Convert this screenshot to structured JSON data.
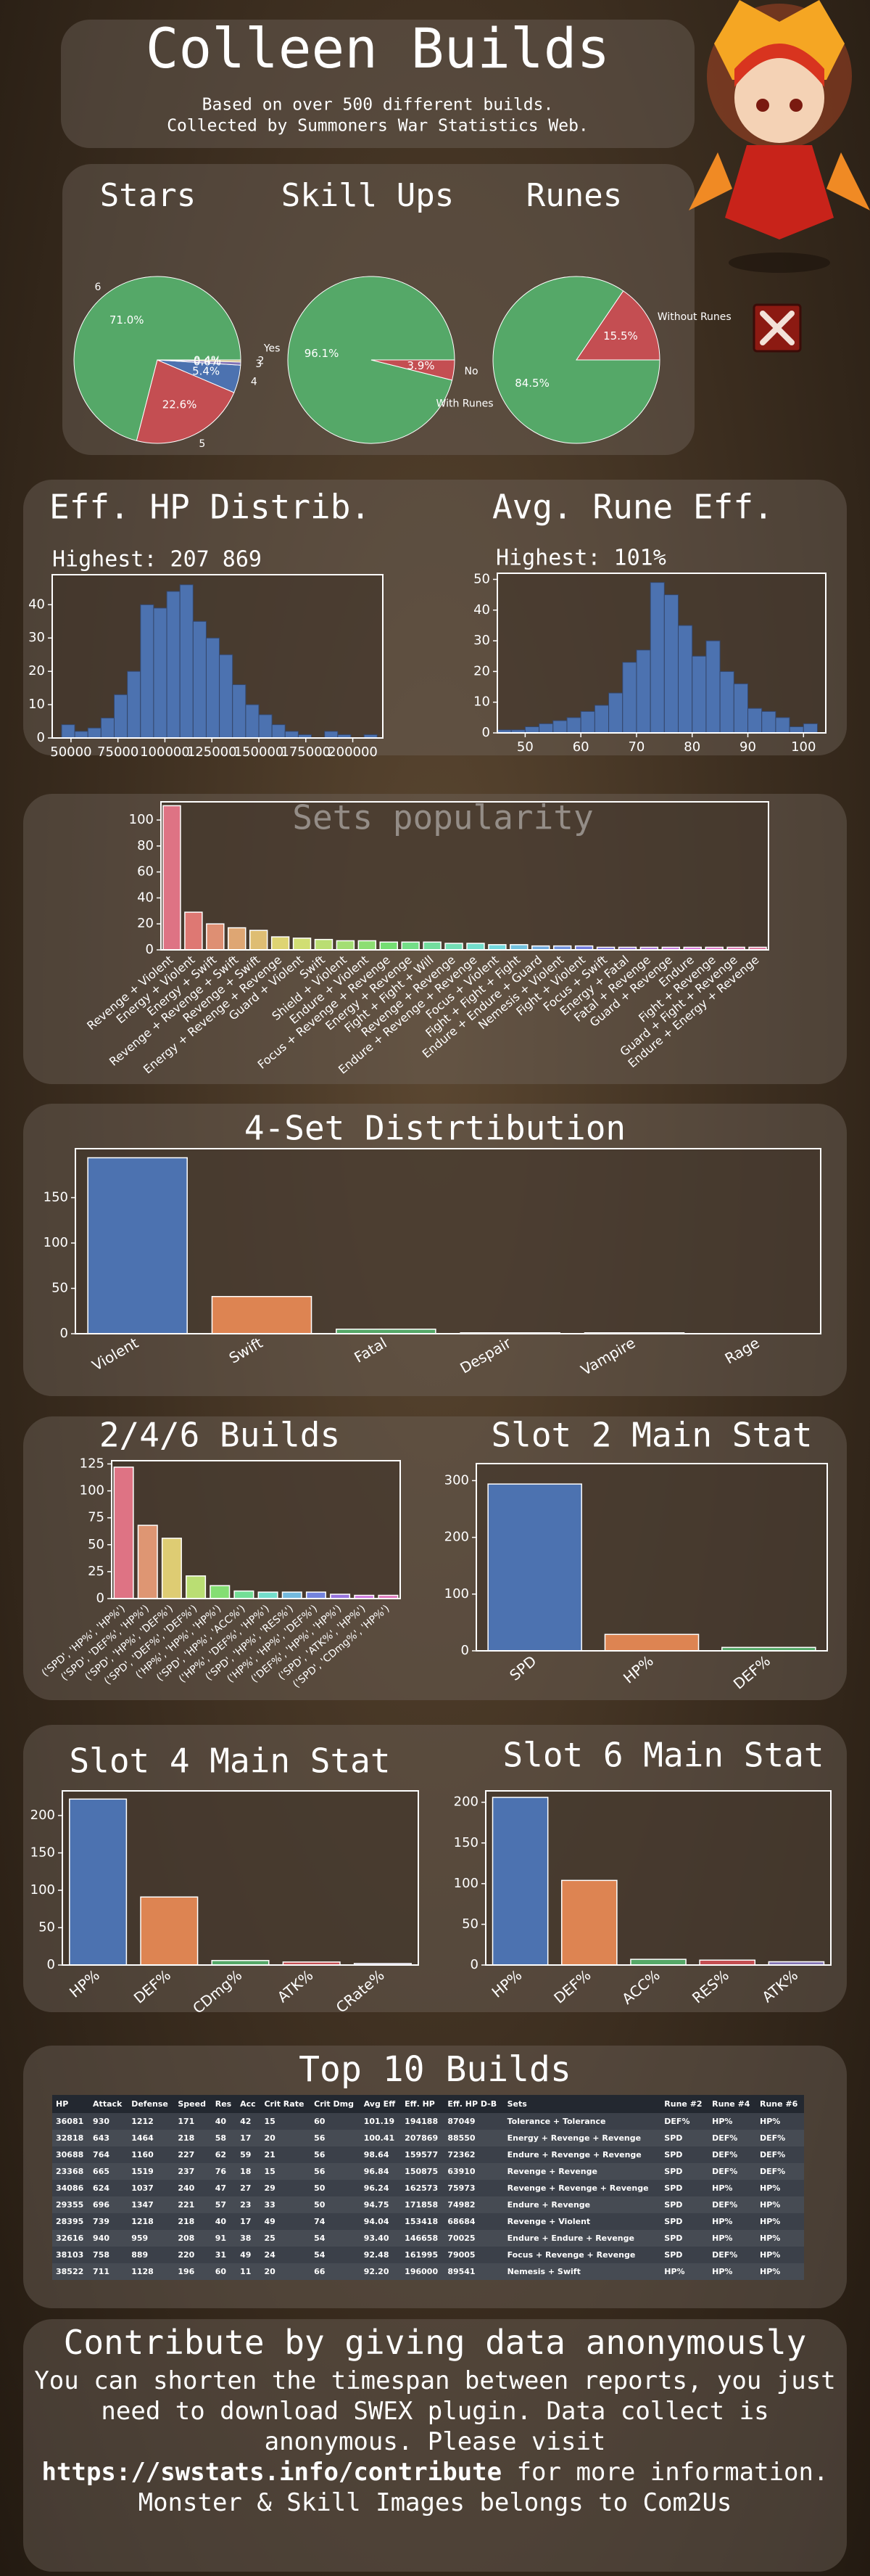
{
  "header": {
    "title": "Colleen Builds",
    "subtitle": [
      "Based on over 500 different builds.",
      "Collected by Summoners War Statistics Web."
    ]
  },
  "chart_data": [
    {
      "type": "pie",
      "title": "Stars",
      "categories": [
        "6",
        "5",
        "4",
        "3",
        "2"
      ],
      "values": [
        71.0,
        22.6,
        5.4,
        0.6,
        0.4
      ],
      "value_labels": [
        "71.0%",
        "22.6%",
        "5.4%",
        "0.6%",
        "0.4%"
      ],
      "colors": [
        "#55a868",
        "#c44e52",
        "#4c72b0",
        "#8172b3",
        "#ccb974"
      ]
    },
    {
      "type": "pie",
      "title": "Skill Ups",
      "categories": [
        "Yes",
        "No"
      ],
      "values": [
        96.1,
        3.9
      ],
      "value_labels": [
        "96.1%",
        "3.9%"
      ],
      "colors": [
        "#55a868",
        "#c44e52"
      ]
    },
    {
      "type": "pie",
      "title": "Runes",
      "categories": [
        "Without Runes",
        "With Runes"
      ],
      "values": [
        15.5,
        84.5
      ],
      "value_labels": [
        "15.5%",
        "84.5%"
      ],
      "colors": [
        "#c44e52",
        "#55a868"
      ]
    },
    {
      "type": "histogram",
      "title": "Eff. HP Distrib.",
      "annotation": "Highest: 207 869",
      "bins": [
        45000,
        52000,
        59000,
        66000,
        73000,
        80000,
        87000,
        94000,
        101000,
        108000,
        115000,
        122000,
        129000,
        136000,
        143000,
        150000,
        157000,
        164000,
        171000,
        178000,
        185000,
        192000,
        199000,
        206000,
        213000
      ],
      "values": [
        4,
        2,
        3,
        6,
        13,
        20,
        40,
        39,
        44,
        46,
        35,
        30,
        25,
        16,
        10,
        7,
        4,
        2,
        1,
        0,
        2,
        1,
        0,
        1
      ],
      "color": "#4c72b0",
      "xlim": [
        40000,
        216000
      ],
      "xticks": [
        50000,
        75000,
        100000,
        125000,
        150000,
        175000,
        200000
      ],
      "ylim": [
        0,
        49
      ],
      "yticks": [
        0,
        10,
        20,
        30,
        40
      ]
    },
    {
      "type": "histogram",
      "title": "Avg. Rune Eff.",
      "annotation": "Highest: 101%",
      "bins": [
        45,
        47.5,
        50,
        52.5,
        55,
        57.5,
        60,
        62.5,
        65,
        67.5,
        70,
        72.5,
        75,
        77.5,
        80,
        82.5,
        85,
        87.5,
        90,
        92.5,
        95,
        97.5,
        100,
        102.5
      ],
      "values": [
        1,
        1,
        2,
        3,
        4,
        5,
        7,
        9,
        13,
        23,
        27,
        49,
        45,
        35,
        25,
        30,
        20,
        16,
        8,
        7,
        5,
        2,
        3
      ],
      "color": "#4c72b0",
      "xlim": [
        45,
        104
      ],
      "xticks": [
        50,
        60,
        70,
        80,
        90,
        100
      ],
      "ylim": [
        0,
        52
      ],
      "yticks": [
        0,
        10,
        20,
        30,
        40,
        50
      ]
    },
    {
      "type": "bar",
      "title": "Sets popularity",
      "palette": "husl",
      "categories": [
        "Revenge + Violent",
        "Energy + Violent",
        "Energy + Swift",
        "Revenge + Revenge + Swift",
        "Revenge + Swift",
        "Energy + Revenge + Revenge",
        "Guard + Violent",
        "Swift",
        "Shield + Violent",
        "Endure + Violent",
        "Focus + Revenge + Revenge",
        "Energy + Revenge",
        "Fight + Fight + Will",
        "Revenge + Revenge",
        "Endure + Revenge + Revenge",
        "Focus + Violent",
        "Fight + Fight + Fight",
        "Endure + Endure + Guard",
        "Nemesis + Violent",
        "Fight + Violent",
        "Focus + Swift",
        "Energy + Fatal",
        "Fatal + Revenge",
        "Guard + Revenge",
        "Endure",
        "Fight + Revenge",
        "Guard + Fight + Revenge",
        "Endure + Energy + Revenge"
      ],
      "values": [
        111,
        29,
        20,
        17,
        15,
        10,
        9,
        8,
        7,
        7,
        6,
        6,
        6,
        5,
        5,
        4,
        4,
        3,
        3,
        3,
        2,
        2,
        2,
        2,
        2,
        2,
        2,
        2
      ],
      "ylim": [
        0,
        114
      ],
      "yticks": [
        0,
        20,
        40,
        60,
        80,
        100
      ]
    },
    {
      "type": "bar",
      "title": "4-Set Distrtibution",
      "categories": [
        "Violent",
        "Swift",
        "Fatal",
        "Despair",
        "Vampire",
        "Rage"
      ],
      "values": [
        194,
        41,
        5,
        1,
        1,
        0
      ],
      "colors": [
        "#4c72b0",
        "#dd8452",
        "#55a868",
        "#c44e52",
        "#8172b3",
        "#937860"
      ],
      "ylim": [
        0,
        204
      ],
      "yticks": [
        0,
        50,
        100,
        150
      ]
    },
    {
      "type": "bar",
      "title": "2/4/6 Builds",
      "palette": "husl",
      "categories": [
        "('SPD', 'HP%', 'HP%')",
        "('SPD', 'DEF%', 'HP%')",
        "('SPD', 'HP%', 'DEF%')",
        "('SPD', 'DEF%', 'DEF%')",
        "('HP%', 'HP%', 'HP%')",
        "('SPD', 'HP%', 'ACC%')",
        "('HP%', 'DEF%', 'HP%')",
        "('SPD', 'HP%', 'RES%')",
        "('HP%', 'HP%', 'DEF%')",
        "('DEF%', 'HP%', 'HP%')",
        "('SPD', 'ATK%', 'HP%')",
        "('SPD', 'CDmg%', 'HP%')"
      ],
      "values": [
        122,
        68,
        56,
        21,
        12,
        7,
        6,
        6,
        6,
        4,
        3,
        3
      ],
      "ylim": [
        0,
        128
      ],
      "yticks": [
        0,
        25,
        50,
        75,
        100,
        125
      ]
    },
    {
      "type": "bar",
      "title": "Slot 2 Main Stat",
      "categories": [
        "SPD",
        "HP%",
        "DEF%"
      ],
      "values": [
        294,
        29,
        6
      ],
      "colors": [
        "#4c72b0",
        "#dd8452",
        "#55a868"
      ],
      "ylim": [
        0,
        330
      ],
      "yticks": [
        0,
        100,
        200,
        300
      ]
    },
    {
      "type": "bar",
      "title": "Slot 4 Main Stat",
      "categories": [
        "HP%",
        "DEF%",
        "CDmg%",
        "ATK%",
        "CRate%"
      ],
      "values": [
        222,
        91,
        6,
        4,
        2
      ],
      "colors": [
        "#4c72b0",
        "#dd8452",
        "#55a868",
        "#c44e52",
        "#8172b3"
      ],
      "ylim": [
        0,
        233
      ],
      "yticks": [
        0,
        50,
        100,
        150,
        200
      ]
    },
    {
      "type": "bar",
      "title": "Slot 6 Main Stat",
      "categories": [
        "HP%",
        "DEF%",
        "ACC%",
        "RES%",
        "ATK%"
      ],
      "values": [
        206,
        104,
        7,
        6,
        4
      ],
      "colors": [
        "#4c72b0",
        "#dd8452",
        "#55a868",
        "#c44e52",
        "#8172b3"
      ],
      "ylim": [
        0,
        214
      ],
      "yticks": [
        0,
        50,
        100,
        150,
        200
      ]
    }
  ],
  "top_builds": {
    "title": "Top 10 Builds",
    "columns": [
      "HP",
      "Attack",
      "Defense",
      "Speed",
      "Res",
      "Acc",
      "Crit Rate",
      "Crit Dmg",
      "Avg Eff",
      "Eff. HP",
      "Eff. HP D-B",
      "Sets",
      "Rune #2",
      "Rune #4",
      "Rune #6"
    ],
    "rows": [
      [
        "36081",
        "930",
        "1212",
        "171",
        "40",
        "42",
        "15",
        "60",
        "101.19",
        "194188",
        "87049",
        "Tolerance + Tolerance",
        "DEF%",
        "HP%",
        "HP%"
      ],
      [
        "32818",
        "643",
        "1464",
        "218",
        "58",
        "17",
        "20",
        "56",
        "100.41",
        "207869",
        "88550",
        "Energy + Revenge + Revenge",
        "SPD",
        "DEF%",
        "DEF%"
      ],
      [
        "30688",
        "764",
        "1160",
        "227",
        "62",
        "59",
        "21",
        "56",
        "98.64",
        "159577",
        "72362",
        "Endure + Revenge + Revenge",
        "SPD",
        "DEF%",
        "DEF%"
      ],
      [
        "23368",
        "665",
        "1519",
        "237",
        "76",
        "18",
        "15",
        "56",
        "96.84",
        "150875",
        "63910",
        "Revenge + Revenge",
        "SPD",
        "DEF%",
        "DEF%"
      ],
      [
        "34086",
        "624",
        "1037",
        "240",
        "47",
        "27",
        "29",
        "50",
        "96.24",
        "162573",
        "75973",
        "Revenge + Revenge + Revenge",
        "SPD",
        "HP%",
        "HP%"
      ],
      [
        "29355",
        "696",
        "1347",
        "221",
        "57",
        "23",
        "33",
        "50",
        "94.75",
        "171858",
        "74982",
        "Endure + Revenge",
        "SPD",
        "DEF%",
        "HP%"
      ],
      [
        "28395",
        "739",
        "1218",
        "218",
        "40",
        "17",
        "49",
        "74",
        "94.04",
        "153418",
        "68684",
        "Revenge + Violent",
        "SPD",
        "HP%",
        "HP%"
      ],
      [
        "32616",
        "940",
        "959",
        "208",
        "91",
        "38",
        "25",
        "54",
        "93.40",
        "146658",
        "70025",
        "Endure + Endure + Revenge",
        "SPD",
        "HP%",
        "HP%"
      ],
      [
        "38103",
        "758",
        "889",
        "220",
        "31",
        "49",
        "24",
        "54",
        "92.48",
        "161995",
        "79005",
        "Focus + Revenge + Revenge",
        "SPD",
        "DEF%",
        "HP%"
      ],
      [
        "38522",
        "711",
        "1128",
        "196",
        "60",
        "11",
        "20",
        "66",
        "92.20",
        "196000",
        "89541",
        "Nemesis + Swift",
        "HP%",
        "HP%",
        "HP%"
      ]
    ]
  },
  "footer": {
    "title": "Contribute by giving data anonymously",
    "text": "You can shorten the timespan between reports, you just need to download SWEX plugin. Data collect is anonymous. Please visit",
    "link": "https://swstats.info/contribute",
    "text_end": "for more information.",
    "credit": "Monster & Skill Images belongs to Com2Us"
  }
}
